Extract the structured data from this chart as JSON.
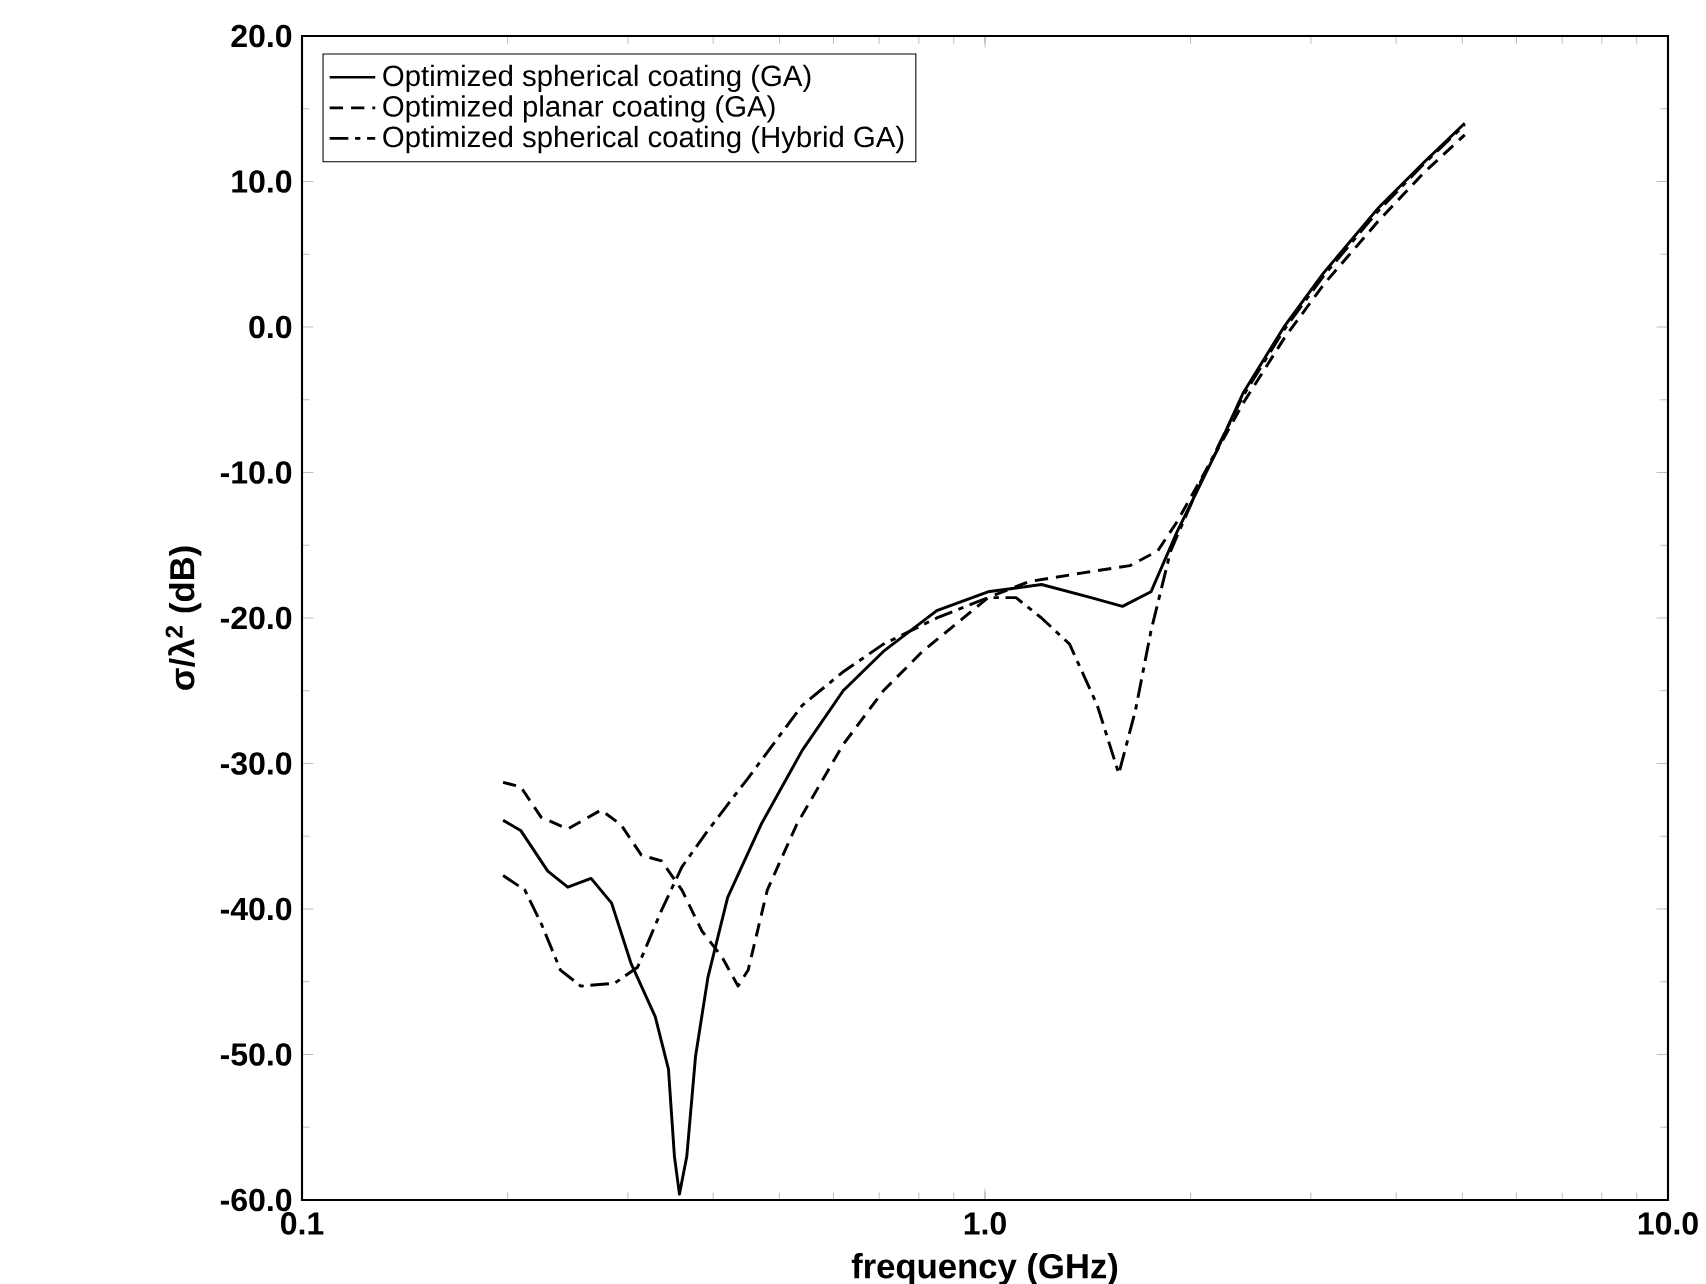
{
  "chart_data": {
    "type": "line",
    "xlabel": "frequency (GHz)",
    "ylabel": "σ/λ$^{2}$ (dB)",
    "log": "x",
    "legend": "top left",
    "grid": false,
    "marker": "none",
    "xlim": [
      0.1,
      10
    ],
    "xticks": [
      {
        "value": 0.1,
        "label": "0.1"
      },
      {
        "value": 1,
        "label": "1.0"
      },
      {
        "value": 10,
        "label": "10.0"
      }
    ],
    "ylim": [
      -60,
      20
    ],
    "yticks": [
      {
        "value": -60,
        "label": "-60.0"
      },
      {
        "value": -50,
        "label": "-50.0"
      },
      {
        "value": -40,
        "label": "-40.0"
      },
      {
        "value": -30,
        "label": "-30.0"
      },
      {
        "value": -20,
        "label": "-20.0"
      },
      {
        "value": -10,
        "label": "-10.0"
      },
      {
        "value": 0,
        "label": "0.0"
      },
      {
        "value": 10,
        "label": "10.0"
      },
      {
        "value": 20,
        "label": "20.0"
      }
    ],
    "series": [
      {
        "name": "Optimized spherical coating (GA)",
        "color": "#000000",
        "line_style": "solid",
        "x": [
          0.197,
          0.209,
          0.229,
          0.245,
          0.265,
          0.284,
          0.303,
          0.329,
          0.344,
          0.351,
          0.357,
          0.366,
          0.377,
          0.393,
          0.42,
          0.47,
          0.54,
          0.62,
          0.71,
          0.85,
          1.01,
          1.21,
          1.43,
          1.59,
          1.75,
          1.91,
          2.18,
          2.39,
          2.74,
          3.13,
          3.77,
          4.39,
          5.04
        ],
        "values": [
          -33.9,
          -34.6,
          -37.4,
          -38.5,
          -37.9,
          -39.6,
          -43.7,
          -47.4,
          -51.0,
          -57.0,
          -59.6,
          -57.0,
          -50.1,
          -44.7,
          -39.2,
          -34.2,
          -29.1,
          -25.0,
          -22.3,
          -19.5,
          -18.2,
          -17.7,
          -18.6,
          -19.2,
          -18.2,
          -14.1,
          -8.6,
          -4.5,
          0.0,
          3.7,
          8.2,
          11.3,
          14.0
        ]
      },
      {
        "name": "Optimized planar coating (GA)",
        "color": "#000000",
        "line_style": "dashed",
        "x": [
          0.197,
          0.209,
          0.224,
          0.245,
          0.274,
          0.293,
          0.314,
          0.336,
          0.36,
          0.385,
          0.412,
          0.435,
          0.45,
          0.48,
          0.53,
          0.604,
          0.62,
          0.71,
          0.81,
          0.93,
          1.01,
          1.16,
          1.39,
          1.63,
          1.79,
          1.91,
          2.18,
          2.39,
          2.74,
          3.13,
          3.77,
          4.39,
          5.04
        ],
        "values": [
          -31.3,
          -31.6,
          -33.7,
          -34.5,
          -33.2,
          -34.2,
          -36.3,
          -36.7,
          -38.7,
          -41.5,
          -43.3,
          -45.3,
          -44.2,
          -38.7,
          -34.2,
          -29.6,
          -28.7,
          -25.0,
          -22.3,
          -20.0,
          -18.6,
          -17.5,
          -16.9,
          -16.4,
          -15.4,
          -13.4,
          -8.6,
          -5.2,
          -0.8,
          2.9,
          7.3,
          10.6,
          13.2
        ]
      },
      {
        "name": "Optimized spherical coating (Hybrid GA)",
        "color": "#000000",
        "line_style": "dashdot",
        "x": [
          0.197,
          0.212,
          0.224,
          0.239,
          0.256,
          0.287,
          0.31,
          0.336,
          0.36,
          0.393,
          0.45,
          0.54,
          0.62,
          0.71,
          0.85,
          1.01,
          1.11,
          1.21,
          1.33,
          1.46,
          1.57,
          1.66,
          1.75,
          1.87,
          2.08,
          2.39,
          2.74,
          3.13,
          3.77,
          4.39,
          5.04
        ],
        "values": [
          -37.7,
          -38.7,
          -41.0,
          -44.2,
          -45.3,
          -45.1,
          -44.0,
          -40.1,
          -37.1,
          -34.6,
          -31.0,
          -26.0,
          -23.7,
          -21.8,
          -20.0,
          -18.6,
          -18.6,
          -20.0,
          -21.8,
          -26.0,
          -30.7,
          -26.4,
          -20.9,
          -15.4,
          -10.4,
          -4.7,
          -0.2,
          3.5,
          8.0,
          11.2,
          13.9
        ]
      }
    ]
  }
}
